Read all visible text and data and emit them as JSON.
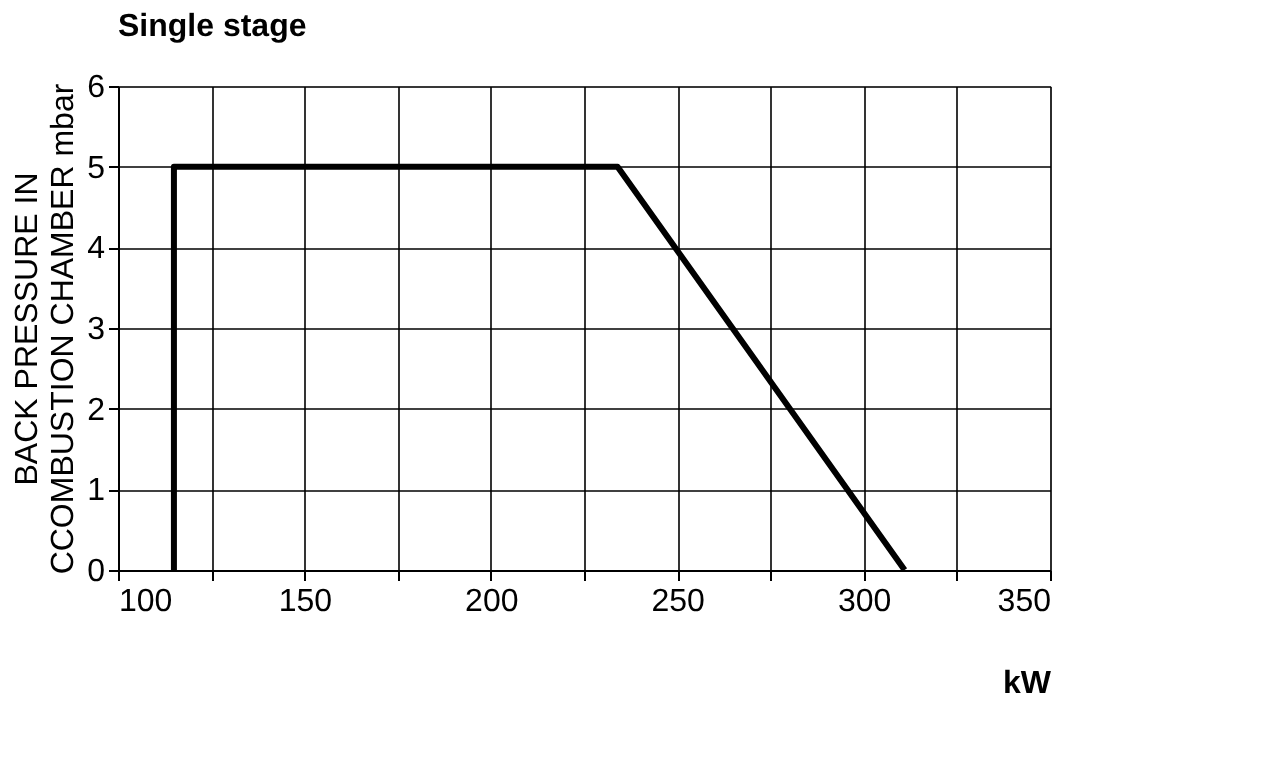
{
  "chart_data": {
    "type": "line",
    "title": "Single stage",
    "xlabel": "kW",
    "ylabel": "BACK PRESSURE IN\nCCOMBUSTION CHAMBER mbar",
    "x": [
      115,
      115,
      234,
      311
    ],
    "values": [
      0,
      5,
      5,
      0
    ],
    "color": "#000000",
    "marker": "none",
    "line_style": "solid",
    "xlim": [
      100,
      350
    ],
    "xticks": [
      100,
      {
        "value": 125,
        "label": null
      },
      150,
      {
        "value": 175,
        "label": null
      },
      200,
      {
        "value": 225,
        "label": null
      },
      250,
      {
        "value": 275,
        "label": null
      },
      300,
      {
        "value": 325,
        "label": null
      },
      350
    ],
    "ylim": [
      0,
      6
    ],
    "yticks": [
      0,
      1,
      2,
      3,
      4,
      5,
      6
    ],
    "grid": true
  }
}
